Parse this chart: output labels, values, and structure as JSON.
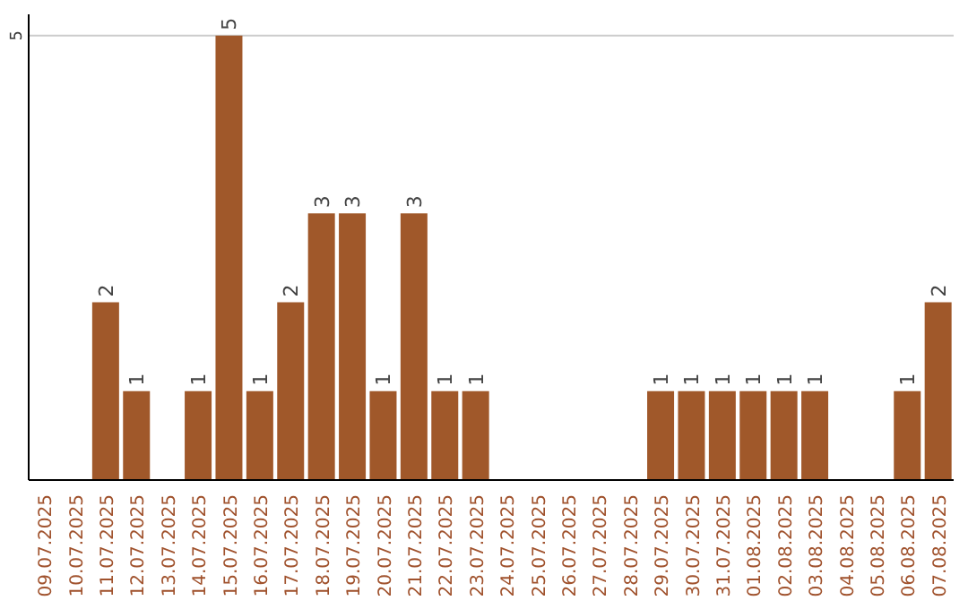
{
  "chart_data": {
    "type": "bar",
    "categories": [
      "09.07.2025",
      "10.07.2025",
      "11.07.2025",
      "12.07.2025",
      "13.07.2025",
      "14.07.2025",
      "15.07.2025",
      "16.07.2025",
      "17.07.2025",
      "18.07.2025",
      "19.07.2025",
      "20.07.2025",
      "21.07.2025",
      "22.07.2025",
      "23.07.2025",
      "24.07.2025",
      "25.07.2025",
      "26.07.2025",
      "27.07.2025",
      "28.07.2025",
      "29.07.2025",
      "30.07.2025",
      "31.07.2025",
      "01.08.2025",
      "02.08.2025",
      "03.08.2025",
      "04.08.2025",
      "05.08.2025",
      "06.08.2025",
      "07.08.2025"
    ],
    "values": [
      0,
      0,
      2,
      1,
      0,
      1,
      5,
      1,
      2,
      3,
      3,
      1,
      3,
      1,
      1,
      0,
      0,
      0,
      0,
      0,
      1,
      1,
      1,
      1,
      1,
      1,
      0,
      0,
      1,
      2
    ],
    "value_labels": [
      null,
      null,
      "2",
      "1",
      null,
      "1",
      "5",
      "1",
      "2",
      "3",
      "3",
      "1",
      "3",
      "1",
      "1",
      null,
      null,
      null,
      null,
      null,
      "1",
      "1",
      "1",
      "1",
      "1",
      "1",
      null,
      null,
      "1",
      "2"
    ],
    "color": "#a0582a",
    "ylim": [
      0,
      5.24
    ],
    "yticks": [
      5
    ],
    "grid": "y"
  }
}
